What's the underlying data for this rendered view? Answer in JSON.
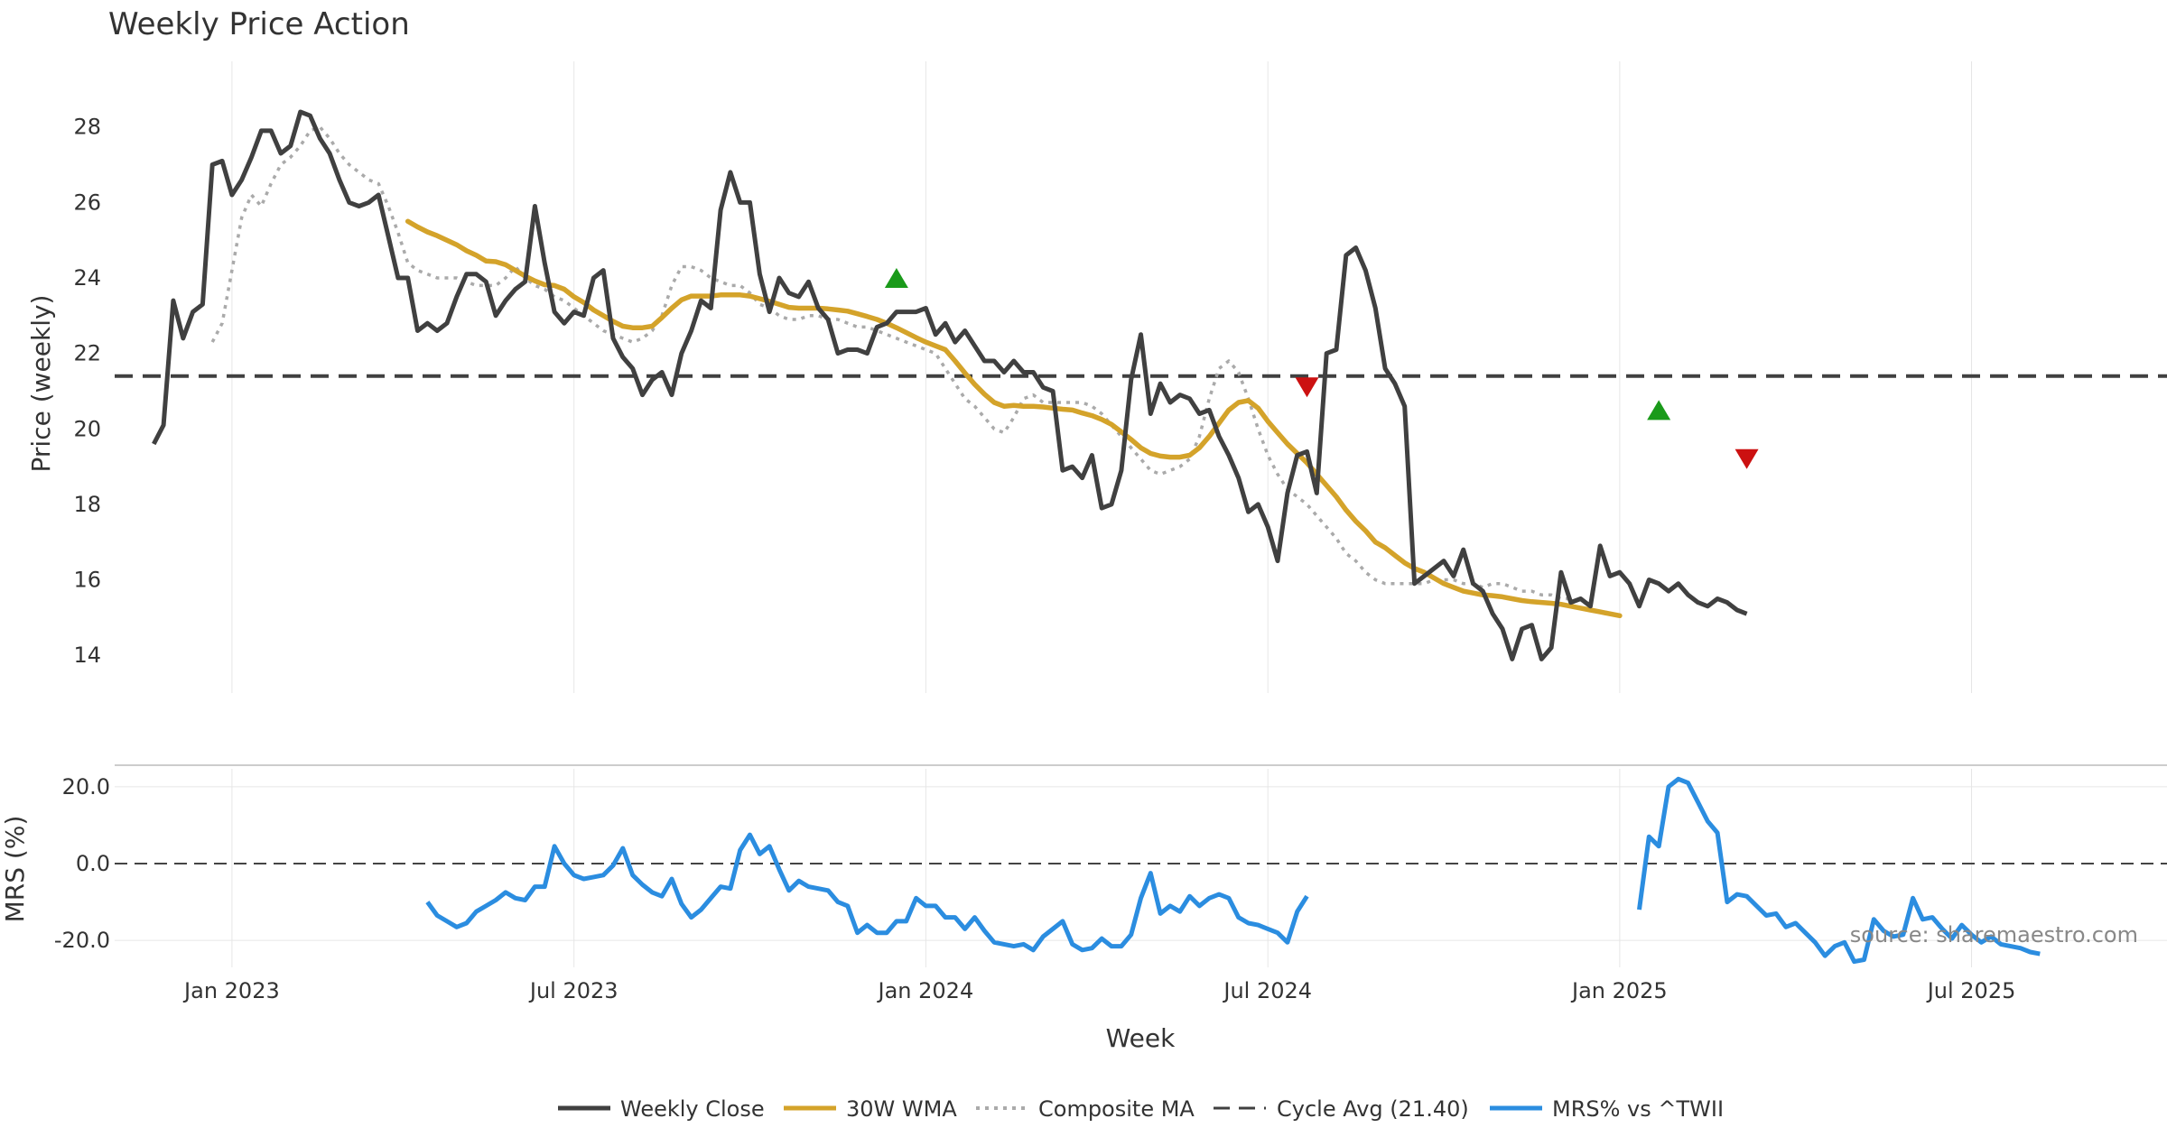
{
  "chart_data": {
    "type": "line",
    "title": "Weekly Price Action",
    "source": "source: sharemaestro.com",
    "xlabel": "Week",
    "x_ticks": [
      "Jan 2023",
      "Jul 2023",
      "Jan 2024",
      "Jul 2024",
      "Jan 2025",
      "Jul 2025"
    ],
    "x_tick_weeks": [
      8,
      43,
      79,
      114,
      150,
      186
    ],
    "x_range": [
      -4,
      206
    ],
    "price_panel": {
      "ylabel": "Price (weekly)",
      "ylim": [
        13,
        29.5
      ],
      "y_ticks": [
        14,
        16,
        18,
        20,
        22,
        24,
        26,
        28
      ],
      "cycle_avg": 21.4,
      "weekly_close": [
        19.6,
        20.1,
        23.4,
        22.4,
        23.1,
        23.3,
        27.0,
        27.1,
        26.2,
        26.6,
        27.2,
        27.9,
        27.9,
        27.3,
        27.5,
        28.4,
        28.3,
        27.7,
        27.3,
        26.6,
        26.0,
        25.9,
        26.0,
        26.2,
        25.1,
        24.0,
        24.0,
        22.6,
        22.8,
        22.6,
        22.8,
        23.5,
        24.1,
        24.1,
        23.9,
        23.0,
        23.4,
        23.7,
        23.9,
        25.9,
        24.4,
        23.1,
        22.8,
        23.1,
        23.0,
        24.0,
        24.2,
        22.4,
        21.9,
        21.6,
        20.9,
        21.3,
        21.5,
        20.9,
        22.0,
        22.6,
        23.4,
        23.2,
        25.8,
        26.8,
        26.0,
        26.0,
        24.1,
        23.1,
        24.0,
        23.6,
        23.5,
        23.9,
        23.2,
        22.9,
        22.0,
        22.1,
        22.1,
        22.0,
        22.7,
        22.8,
        23.1,
        23.1,
        23.1,
        23.2,
        22.5,
        22.8,
        22.3,
        22.6,
        22.2,
        21.8,
        21.8,
        21.5,
        21.8,
        21.5,
        21.5,
        21.1,
        21.0,
        18.9,
        19.0,
        18.7,
        19.3,
        17.9,
        18.0,
        18.9,
        21.3,
        22.5,
        20.4,
        21.2,
        20.7,
        20.9,
        20.8,
        20.4,
        20.5,
        19.8,
        19.3,
        18.7,
        17.8,
        18.0,
        17.4,
        16.5,
        18.3,
        19.3,
        19.4,
        18.3,
        22.0,
        22.1,
        24.6,
        24.8,
        24.2,
        23.2,
        21.6,
        21.2,
        20.6,
        15.9,
        16.1,
        16.3,
        16.5,
        16.1,
        16.8,
        15.9,
        15.7,
        15.1,
        14.7,
        13.9,
        14.7,
        14.8,
        13.9,
        14.2,
        16.2,
        15.4,
        15.5,
        15.3,
        16.9,
        16.1,
        16.2,
        15.9,
        15.3,
        16.0,
        15.9,
        15.7,
        15.9,
        15.6,
        15.4,
        15.3,
        15.5,
        15.4,
        15.2,
        15.1
      ],
      "wma_30w": {
        "start_week": 26,
        "values": [
          25.5,
          25.35,
          25.22,
          25.12,
          25.0,
          24.88,
          24.72,
          24.6,
          24.45,
          24.43,
          24.35,
          24.2,
          24.05,
          23.92,
          23.82,
          23.8,
          23.7,
          23.5,
          23.35,
          23.15,
          23.0,
          22.85,
          22.72,
          22.68,
          22.68,
          22.72,
          22.95,
          23.2,
          23.42,
          23.52,
          23.52,
          23.52,
          23.55,
          23.55,
          23.55,
          23.52,
          23.45,
          23.38,
          23.3,
          23.22,
          23.2,
          23.2,
          23.2,
          23.18,
          23.15,
          23.12,
          23.05,
          22.98,
          22.9,
          22.8,
          22.68,
          22.55,
          22.42,
          22.3,
          22.2,
          22.1,
          21.8,
          21.48,
          21.18,
          20.92,
          20.7,
          20.6,
          20.62,
          20.6,
          20.6,
          20.58,
          20.55,
          20.52,
          20.5,
          20.42,
          20.35,
          20.25,
          20.12,
          19.92,
          19.72,
          19.5,
          19.35,
          19.28,
          19.25,
          19.25,
          19.3,
          19.5,
          19.8,
          20.15,
          20.5,
          20.7,
          20.75,
          20.55,
          20.2,
          19.9,
          19.6,
          19.35,
          19.1,
          18.8,
          18.5,
          18.2,
          17.85,
          17.55,
          17.3,
          17.0,
          16.85,
          16.65,
          16.45,
          16.3,
          16.2,
          16.05,
          15.9,
          15.8,
          15.7,
          15.65,
          15.6,
          15.58,
          15.55,
          15.5,
          15.45,
          15.42,
          15.4,
          15.38,
          15.35,
          15.3,
          15.25,
          15.2,
          15.15,
          15.1,
          15.05
        ]
      },
      "composite_ma": {
        "start_week": 6,
        "values": [
          22.3,
          22.8,
          24.2,
          25.6,
          26.2,
          25.9,
          26.5,
          27.0,
          27.2,
          27.5,
          27.9,
          28.0,
          27.7,
          27.3,
          27.0,
          26.8,
          26.6,
          26.5,
          25.9,
          25.2,
          24.4,
          24.2,
          24.1,
          24.0,
          24.0,
          24.0,
          23.9,
          23.8,
          23.8,
          23.8,
          24.0,
          24.3,
          24.0,
          23.8,
          23.7,
          23.5,
          23.4,
          23.2,
          23.0,
          22.8,
          22.6,
          22.5,
          22.4,
          22.3,
          22.4,
          22.6,
          23.0,
          23.8,
          24.3,
          24.3,
          24.2,
          24.0,
          23.9,
          23.8,
          23.8,
          23.6,
          23.3,
          23.2,
          23.0,
          22.9,
          22.9,
          23.0,
          23.0,
          22.9,
          22.9,
          22.8,
          22.7,
          22.7,
          22.6,
          22.5,
          22.4,
          22.3,
          22.2,
          22.1,
          22.0,
          21.6,
          21.2,
          20.8,
          20.6,
          20.3,
          20.0,
          19.9,
          20.3,
          20.8,
          20.9,
          20.7,
          20.7,
          20.7,
          20.7,
          20.7,
          20.6,
          20.4,
          20.1,
          19.8,
          19.5,
          19.2,
          18.9,
          18.8,
          18.9,
          19.0,
          19.2,
          19.8,
          20.8,
          21.6,
          21.8,
          21.5,
          20.8,
          20.0,
          19.3,
          18.8,
          18.4,
          18.2,
          18.0,
          17.7,
          17.4,
          17.1,
          16.7,
          16.5,
          16.2,
          16.0,
          15.9,
          15.9,
          15.9,
          15.9,
          15.9,
          16.0,
          16.0,
          16.0,
          15.9,
          15.9,
          15.8,
          15.9,
          15.9,
          15.8,
          15.7,
          15.7,
          15.6,
          15.6,
          15.5,
          15.5
        ]
      },
      "buy_markers": [
        {
          "week": 76,
          "price": 24.0
        },
        {
          "week": 154,
          "price": 20.5
        }
      ],
      "sell_markers": [
        {
          "week": 118,
          "price": 21.1
        },
        {
          "week": 163,
          "price": 19.2
        }
      ]
    },
    "mrs_panel": {
      "ylabel": "MRS (%)",
      "ylim": [
        -27,
        27
      ],
      "y_ticks": [
        20.0,
        0.0,
        -20.0
      ],
      "y_tick_labels": [
        "20.0",
        "0.0",
        "-20.0"
      ],
      "reference_line": 0,
      "segments": [
        {
          "start_week": 28,
          "values": [
            -10,
            -13.5,
            -15,
            -16.5,
            -15.5,
            -12.5,
            -11,
            -9.5,
            -7.5,
            -9,
            -9.5,
            -6,
            -6,
            4.5,
            0,
            -3,
            -4,
            -3.5,
            -3,
            -0.5,
            4,
            -3,
            -5.5,
            -7.5,
            -8.5,
            -4,
            -10.5,
            -14,
            -12,
            -9,
            -6,
            -6.5,
            3.5,
            7.5,
            2.5,
            4.5,
            -1.5,
            -7,
            -4.5,
            -6,
            -6.5,
            -7,
            -10,
            -11,
            -18,
            -16,
            -18,
            -18,
            -15,
            -15,
            -9,
            -11,
            -11,
            -14,
            -14,
            -17,
            -14,
            -17.5,
            -20.5,
            -21,
            -21.5,
            -21,
            -22.5,
            -19,
            -17,
            -15,
            -21,
            -22.5,
            -22,
            -19.5,
            -21.5,
            -21.5,
            -18.5,
            -9,
            -2.5,
            -13,
            -11,
            -12.5,
            -8.5,
            -11,
            -9,
            -8,
            -9,
            -14,
            -15.5,
            -16,
            -17,
            -18,
            -20.5,
            -12.5,
            -8.5
          ]
        },
        {
          "start_week": 152,
          "values": [
            -12,
            7,
            4.5,
            20,
            22,
            21,
            16,
            11,
            8,
            -10,
            -8,
            -8.5,
            -11,
            -13.5,
            -13,
            -16.5,
            -15.5,
            -18,
            -20.5,
            -24,
            -21.5,
            -20.5,
            -25.5,
            -25,
            -14.5,
            -17.5,
            -19,
            -18.5,
            -9,
            -14.5,
            -14,
            -17,
            -19.5,
            -16,
            -18.5,
            -20.5,
            -19,
            -21,
            -21.5,
            -22,
            -23,
            -23.5
          ]
        }
      ]
    },
    "legend": {
      "placement": "bottom-center",
      "entries": [
        {
          "label": "Weekly Close",
          "color": "#404040",
          "style": "solid"
        },
        {
          "label": "30W WMA",
          "color": "#d4a32a",
          "style": "solid"
        },
        {
          "label": "Composite MA",
          "color": "#aaaaaa",
          "style": "dotted"
        },
        {
          "label": "Cycle Avg (21.40)",
          "color": "#404040",
          "style": "dashed"
        },
        {
          "label": "MRS% vs ^TWII",
          "color": "#2b8de0",
          "style": "solid"
        }
      ]
    },
    "colors": {
      "close": "#404040",
      "wma": "#d4a32a",
      "composite": "#aaaaaa",
      "cycle": "#404040",
      "mrs": "#2b8de0",
      "buy": "#1a9a1a",
      "sell": "#cc1111",
      "grid": "#e6e6e6"
    }
  }
}
